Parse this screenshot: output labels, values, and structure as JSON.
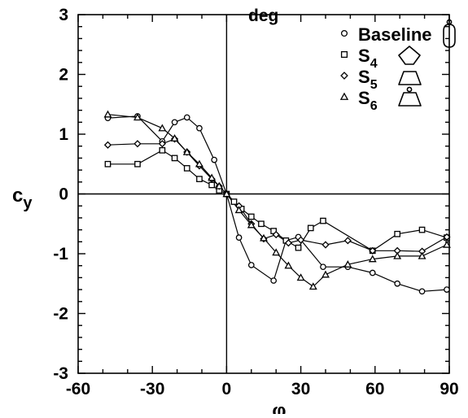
{
  "chart_data": {
    "type": "line",
    "x_unit_label": "deg",
    "xlabel": "φ",
    "ylabel": "c",
    "ylabel_sub": "y",
    "xlim": [
      -60,
      90
    ],
    "ylim": [
      -3,
      3
    ],
    "xticks": [
      -60,
      -30,
      0,
      30,
      60,
      90
    ],
    "yticks": [
      -3,
      -2,
      -1,
      0,
      1,
      2,
      3
    ],
    "grid": false,
    "legend_position": "top-right",
    "series": [
      {
        "name": "Baseline",
        "marker": "circle",
        "cross_section_icon": "rounded-slot-icon",
        "x": [
          -48,
          -36,
          -26,
          -21,
          -16,
          -11,
          -5,
          0,
          5,
          10,
          19,
          24,
          29,
          39,
          49,
          59,
          69,
          79,
          89
        ],
        "y": [
          1.27,
          1.3,
          0.88,
          1.2,
          1.28,
          1.1,
          0.57,
          0.0,
          -0.73,
          -1.19,
          -1.45,
          -0.78,
          -0.72,
          -1.22,
          -1.22,
          -1.32,
          -1.5,
          -1.63,
          -1.6
        ]
      },
      {
        "name": "S4",
        "name_sub": "4",
        "marker": "square",
        "cross_section_icon": "pentagon-icon",
        "x": [
          -48,
          -36,
          -26,
          -21,
          -16,
          -11,
          -6,
          -3,
          0,
          3,
          6,
          10,
          14,
          19,
          24,
          29,
          34,
          39,
          59,
          69,
          79,
          89
        ],
        "y": [
          0.5,
          0.5,
          0.73,
          0.6,
          0.43,
          0.25,
          0.15,
          0.06,
          0.0,
          -0.13,
          -0.25,
          -0.38,
          -0.5,
          -0.62,
          -0.78,
          -0.9,
          -0.57,
          -0.45,
          -0.95,
          -0.67,
          -0.6,
          -0.73
        ]
      },
      {
        "name": "S5",
        "name_sub": "5",
        "marker": "diamond",
        "cross_section_icon": "trapezoid-icon",
        "x": [
          -48,
          -36,
          -26,
          -21,
          -16,
          -11,
          -6,
          -3,
          0,
          5,
          10,
          15,
          20,
          25,
          30,
          40,
          49,
          59,
          69,
          79,
          89
        ],
        "y": [
          0.82,
          0.84,
          0.84,
          0.92,
          0.7,
          0.47,
          0.25,
          0.13,
          0.0,
          -0.2,
          -0.5,
          -0.75,
          -0.68,
          -0.82,
          -0.77,
          -0.85,
          -0.78,
          -0.95,
          -0.95,
          -0.96,
          -0.72
        ]
      },
      {
        "name": "S6",
        "name_sub": "6",
        "marker": "triangle",
        "cross_section_icon": "trapezoid-peaked-icon",
        "x": [
          -48,
          -36,
          -26,
          -21,
          -16,
          -11,
          -6,
          -3,
          0,
          5,
          10,
          15,
          20,
          25,
          30,
          35,
          40,
          49,
          59,
          69,
          79,
          89
        ],
        "y": [
          1.33,
          1.28,
          1.1,
          0.93,
          0.7,
          0.5,
          0.27,
          0.13,
          0.0,
          -0.27,
          -0.52,
          -0.74,
          -0.98,
          -1.2,
          -1.4,
          -1.55,
          -1.35,
          -1.18,
          -1.09,
          -1.04,
          -1.04,
          -0.85
        ]
      }
    ]
  }
}
